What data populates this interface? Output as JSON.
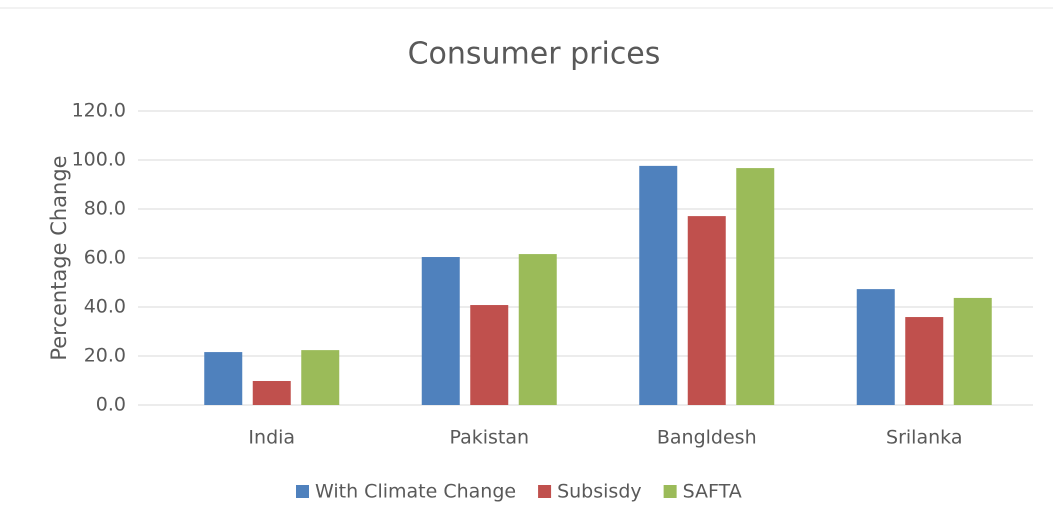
{
  "chart_data": {
    "type": "bar",
    "title": "Consumer prices",
    "y_label": "Percentage Change",
    "categories": [
      "India",
      "Pakistan",
      "Bangldesh",
      "Srilanka"
    ],
    "series": [
      {
        "name": "With Climate Change",
        "color": "#4f81bd",
        "values": [
          21.6,
          60.4,
          97.6,
          47.3
        ]
      },
      {
        "name": "Subsisdy",
        "color": "#c0504d",
        "values": [
          9.8,
          40.8,
          77.1,
          35.9
        ]
      },
      {
        "name": "SAFTA",
        "color": "#9bbb59",
        "values": [
          22.4,
          61.6,
          96.7,
          43.7
        ]
      }
    ],
    "ylim": [
      0,
      120
    ],
    "yticks": [
      {
        "value": 0,
        "label": "0.0"
      },
      {
        "value": 20,
        "label": "20.0"
      },
      {
        "value": 40,
        "label": "40.0"
      },
      {
        "value": 60,
        "label": "60.0"
      },
      {
        "value": 80,
        "label": "80.0"
      },
      {
        "value": 100,
        "label": "100.0"
      },
      {
        "value": 120,
        "label": "120.0"
      }
    ],
    "grid": true,
    "legend": "bottom"
  }
}
